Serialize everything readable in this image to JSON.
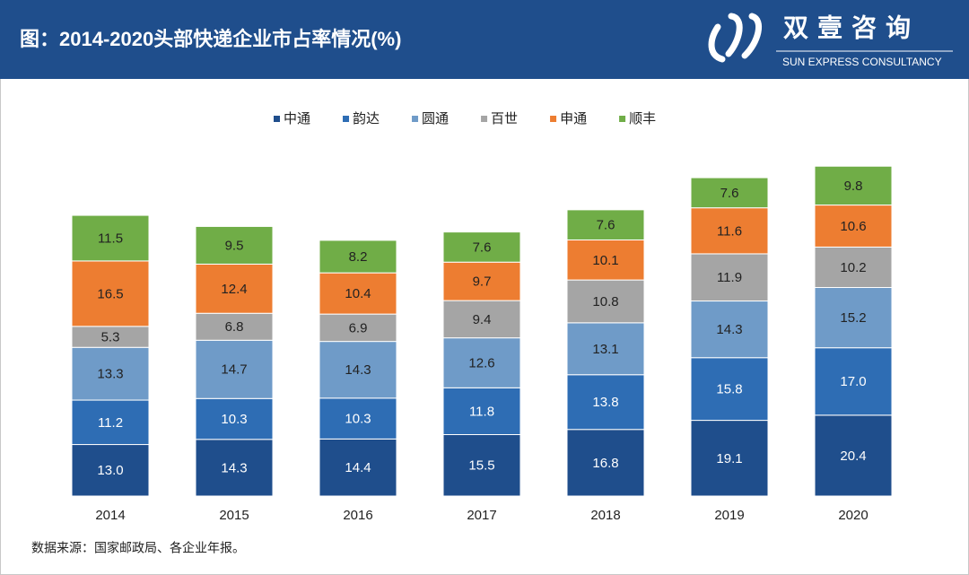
{
  "header": {
    "title": "图：2014-2020头部快递企业市占率情况(%)",
    "brand": "双壹咨询",
    "brand_en": "SUN EXPRESS CONSULTANCY"
  },
  "chart_data": {
    "type": "stacked_bar",
    "categories": [
      "2014",
      "2015",
      "2016",
      "2017",
      "2018",
      "2019",
      "2020"
    ],
    "series": [
      {
        "name": "中通",
        "color": "#1f4e8c",
        "values": [
          13.0,
          14.3,
          14.4,
          15.5,
          16.8,
          19.1,
          20.4
        ],
        "value_labels": [
          "13.0",
          "14.3",
          "14.4",
          "15.5",
          "16.8",
          "19.1",
          "20.4"
        ]
      },
      {
        "name": "韵达",
        "color": "#2e6db4",
        "values": [
          11.2,
          10.3,
          10.3,
          11.8,
          13.8,
          15.8,
          17.0
        ],
        "value_labels": [
          "11.2",
          "10.3",
          "10.3",
          "11.8",
          "13.8",
          "15.8",
          "17.0"
        ]
      },
      {
        "name": "圆通",
        "color": "#6f9bc8",
        "values": [
          13.3,
          14.7,
          14.3,
          12.6,
          13.1,
          14.3,
          15.2
        ]
      },
      {
        "name": "百世",
        "color": "#a5a5a5",
        "values": [
          5.3,
          6.8,
          6.9,
          9.4,
          10.8,
          11.9,
          10.2
        ]
      },
      {
        "name": "申通",
        "color": "#ed7d31",
        "values": [
          16.5,
          12.4,
          10.4,
          9.7,
          10.1,
          11.6,
          10.6
        ]
      },
      {
        "name": "顺丰",
        "color": "#70ad47",
        "values": [
          11.5,
          9.5,
          8.2,
          7.6,
          7.6,
          7.6,
          9.8
        ]
      }
    ],
    "legend": "top"
  },
  "source": "数据来源：国家邮政局、各企业年报。"
}
